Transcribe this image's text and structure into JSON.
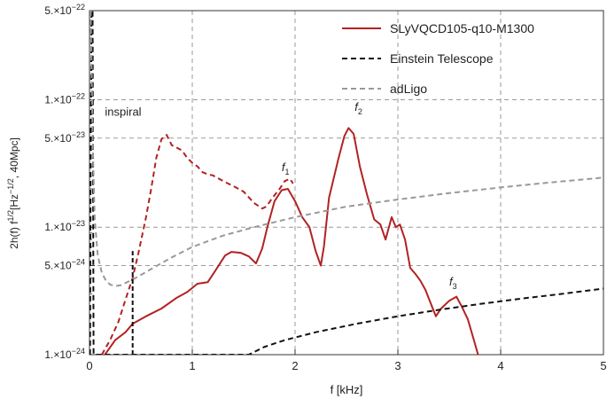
{
  "chart_data": {
    "type": "line",
    "xlabel": "f [kHz]",
    "ylabel": {
      "base": "2",
      "h": "h",
      "rest": "(f) f",
      "exp1": "1/2",
      "unit": "[Hz",
      "exp2": "−1/2",
      "tail": ", 40Mpc]"
    },
    "x_scale": "linear",
    "y_scale": "log",
    "xlim": [
      0,
      5
    ],
    "ylim": [
      1e-24,
      5e-22
    ],
    "x_ticks": [
      {
        "v": 0,
        "label": "0"
      },
      {
        "v": 1,
        "label": "1"
      },
      {
        "v": 2,
        "label": "2"
      },
      {
        "v": 3,
        "label": "3"
      },
      {
        "v": 4,
        "label": "4"
      },
      {
        "v": 5,
        "label": "5"
      }
    ],
    "y_ticks": [
      {
        "v": 1e-24,
        "mant": "1.×10",
        "exp": "−24"
      },
      {
        "v": 5e-24,
        "mant": "5.×10",
        "exp": "−24"
      },
      {
        "v": 1e-23,
        "mant": "1.×10",
        "exp": "−23"
      },
      {
        "v": 5e-23,
        "mant": "5.×10",
        "exp": "−23"
      },
      {
        "v": 1e-22,
        "mant": "1.×10",
        "exp": "−22"
      },
      {
        "v": 5e-22,
        "mant": "5.×10",
        "exp": "−22"
      }
    ],
    "grid": true,
    "legend_position": "top-right",
    "colors": {
      "signal": "#b22222",
      "et": "#111111",
      "adligo": "#999999",
      "grid": "#9a9a9a"
    },
    "series": [
      {
        "name": "SLyVQCD105-q10-M1300",
        "style": "solid",
        "x": [
          0.15,
          0.25,
          0.35,
          0.42,
          0.55,
          0.7,
          0.85,
          0.95,
          1.05,
          1.15,
          1.22,
          1.32,
          1.38,
          1.47,
          1.55,
          1.62,
          1.68,
          1.73,
          1.8,
          1.87,
          1.93,
          2.0,
          2.07,
          2.14,
          2.2,
          2.25,
          2.28,
          2.33,
          2.42,
          2.48,
          2.52,
          2.57,
          2.63,
          2.7,
          2.77,
          2.83,
          2.88,
          2.94,
          2.98,
          3.02,
          3.07,
          3.12,
          3.17,
          3.22,
          3.27,
          3.33,
          3.37,
          3.42,
          3.5,
          3.57,
          3.62,
          3.68,
          3.74,
          3.78
        ],
        "y": [
          1e-24,
          1.3e-24,
          1.5e-24,
          1.75e-24,
          2e-24,
          2.3e-24,
          2.8e-24,
          3.1e-24,
          3.6e-24,
          3.7e-24,
          4.5e-24,
          6e-24,
          6.4e-24,
          6.3e-24,
          5.9e-24,
          5.2e-24,
          6.8e-24,
          1e-23,
          1.6e-23,
          1.95e-23,
          2e-23,
          1.6e-23,
          1.2e-23,
          1e-23,
          6.5e-24,
          5e-24,
          7e-24,
          1.7e-23,
          3.4e-23,
          5.2e-23,
          6e-23,
          5.4e-23,
          3e-23,
          1.8e-23,
          1.15e-23,
          1.05e-23,
          8e-24,
          1.2e-23,
          1e-23,
          1.05e-23,
          8e-24,
          4.8e-24,
          4.3e-24,
          3.8e-24,
          3.2e-24,
          2.4e-24,
          2e-24,
          2.3e-24,
          2.65e-24,
          2.85e-24,
          2.4e-24,
          1.9e-24,
          1.3e-24,
          1e-24
        ]
      },
      {
        "name": "",
        "style": "dashed",
        "x": [
          0.12,
          0.2,
          0.28,
          0.35,
          0.42,
          0.48,
          0.55,
          0.6,
          0.65,
          0.7,
          0.75,
          0.8,
          0.85,
          0.9,
          0.95,
          1.0,
          1.05,
          1.1,
          1.15,
          1.2,
          1.3,
          1.4,
          1.5,
          1.6,
          1.68,
          1.72,
          1.78,
          1.85,
          1.9,
          1.95,
          1.98
        ],
        "y": [
          1e-24,
          1.3e-24,
          1.8e-24,
          2.7e-24,
          4e-24,
          6.5e-24,
          1.2e-23,
          2e-23,
          3.5e-23,
          4.9e-23,
          5.3e-23,
          4.4e-23,
          4.2e-23,
          4e-23,
          3.5e-23,
          3.2e-23,
          3e-23,
          2.7e-23,
          2.6e-23,
          2.55e-23,
          2.3e-23,
          2.1e-23,
          1.9e-23,
          1.55e-23,
          1.4e-23,
          1.45e-23,
          1.7e-23,
          2e-23,
          2.3e-23,
          2.4e-23,
          2.2e-23
        ]
      },
      {
        "name": "Einstein Telescope",
        "style": "dashed",
        "x": [
          0.005,
          0.01,
          0.02,
          0.03,
          0.04,
          1.55,
          1.7,
          1.9,
          2.2,
          2.6,
          3.0,
          3.4,
          3.8,
          4.2,
          4.6,
          5.0
        ],
        "y": [
          1e-24,
          2e-23,
          5e-22,
          5e-22,
          1e-24,
          1e-24,
          1.15e-24,
          1.3e-24,
          1.5e-24,
          1.75e-24,
          2e-24,
          2.25e-24,
          2.5e-24,
          2.75e-24,
          3e-24,
          3.3e-24
        ]
      },
      {
        "name": "adLigo",
        "style": "dashed",
        "x": [
          0.01,
          0.02,
          0.03,
          0.05,
          0.08,
          0.12,
          0.16,
          0.2,
          0.25,
          0.3,
          0.35,
          0.45,
          0.6,
          0.8,
          1.0,
          1.3,
          1.6,
          2.0,
          2.5,
          3.0,
          3.5,
          4.0,
          4.5,
          5.0
        ],
        "y": [
          5e-22,
          2e-22,
          5e-23,
          1.2e-23,
          6e-24,
          4.4e-24,
          3.8e-24,
          3.55e-24,
          3.45e-24,
          3.5e-24,
          3.65e-24,
          4e-24,
          4.7e-24,
          5.8e-24,
          7e-24,
          8.6e-24,
          1e-23,
          1.2e-23,
          1.45e-23,
          1.65e-23,
          1.85e-23,
          2.05e-23,
          2.25e-23,
          2.45e-23
        ]
      },
      {
        "name": "",
        "style": "dashed",
        "x": [
          0.42,
          0.42
        ],
        "y": [
          1e-24,
          6.5e-24
        ]
      }
    ],
    "annotations": [
      {
        "text": "inspiral",
        "sub": "",
        "x": 0.15,
        "y": 7.5e-23
      },
      {
        "text": "f",
        "sub": "1",
        "x": 1.87,
        "y": 2.75e-23
      },
      {
        "text": "f",
        "sub": "2",
        "x": 2.58,
        "y": 8.2e-23
      },
      {
        "text": "f",
        "sub": "3",
        "x": 3.5,
        "y": 3.5e-24
      }
    ]
  }
}
